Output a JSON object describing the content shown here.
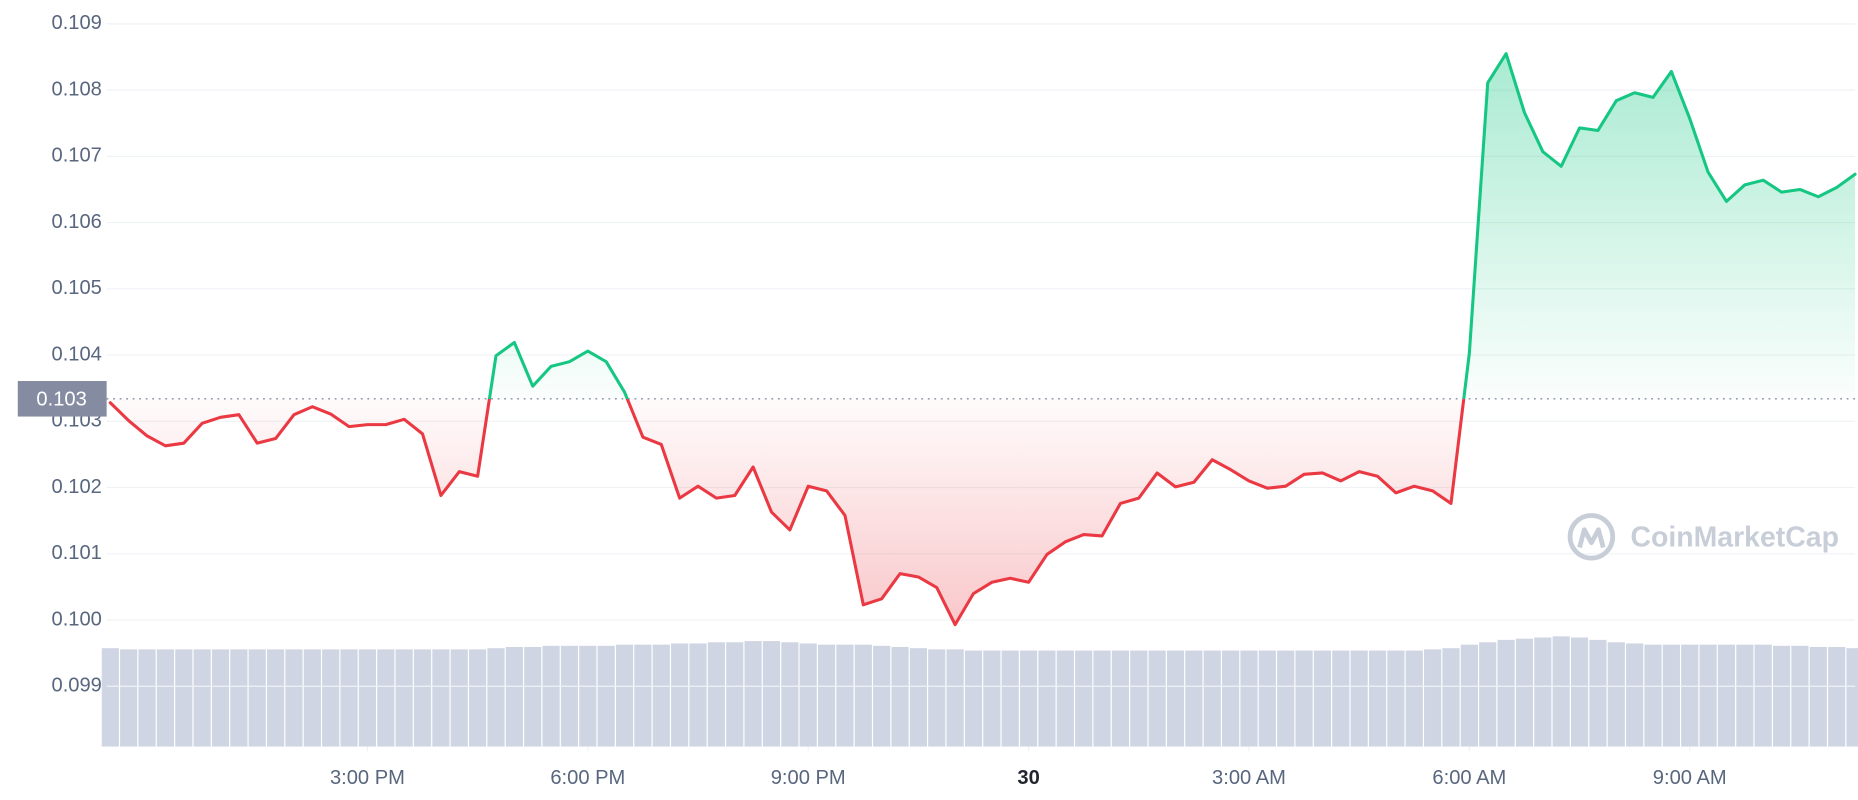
{
  "chart_data": {
    "type": "line",
    "x": [
      11.5,
      11.75,
      12,
      12.25,
      12.5,
      12.75,
      13,
      13.25,
      13.5,
      13.75,
      14,
      14.25,
      14.5,
      14.75,
      15,
      15.25,
      15.5,
      15.75,
      16,
      16.25,
      16.5,
      16.75,
      17,
      17.25,
      17.5,
      17.75,
      18,
      18.25,
      18.5,
      18.75,
      19,
      19.25,
      19.5,
      19.75,
      20,
      20.25,
      20.5,
      20.75,
      21,
      21.25,
      21.5,
      21.75,
      22,
      22.25,
      22.5,
      22.75,
      23,
      23.25,
      23.5,
      23.75,
      24,
      24.25,
      24.5,
      24.75,
      25,
      25.25,
      25.5,
      25.75,
      26,
      26.25,
      26.5,
      26.75,
      27,
      27.25,
      27.5,
      27.75,
      28,
      28.25,
      28.5,
      28.75,
      29,
      29.25,
      29.5,
      29.75,
      30,
      30.25,
      30.5,
      30.75,
      31,
      31.25,
      31.5,
      31.75,
      32,
      32.25,
      32.5,
      32.75,
      33,
      33.25,
      33.5,
      33.75,
      34,
      34.25,
      34.5,
      34.75,
      35,
      35.25
    ],
    "series": [
      {
        "color_up": "#16c784",
        "color_down": "#ea3943",
        "values": [
          0.10328,
          0.10301,
          0.10278,
          0.10263,
          0.10267,
          0.10297,
          0.10306,
          0.1031,
          0.10267,
          0.10274,
          0.1031,
          0.10322,
          0.10311,
          0.10292,
          0.10295,
          0.10295,
          0.10303,
          0.10281,
          0.10188,
          0.10224,
          0.10217,
          0.10399,
          0.10419,
          0.10353,
          0.10383,
          0.1039,
          0.10406,
          0.1039,
          0.10344,
          0.10276,
          0.10265,
          0.10184,
          0.10202,
          0.10184,
          0.10188,
          0.10231,
          0.10163,
          0.10136,
          0.10202,
          0.10195,
          0.10158,
          0.10023,
          0.10032,
          0.1007,
          0.10065,
          0.10049,
          0.09993,
          0.1004,
          0.10057,
          0.10063,
          0.10057,
          0.10099,
          0.10118,
          0.10129,
          0.10127,
          0.10176,
          0.10184,
          0.10222,
          0.10201,
          0.10208,
          0.10242,
          0.10227,
          0.1021,
          0.10199,
          0.10202,
          0.1022,
          0.10222,
          0.1021,
          0.10224,
          0.10217,
          0.10192,
          0.10202,
          0.10195,
          0.10176,
          0.10403,
          0.10811,
          0.10855,
          0.10766,
          0.10707,
          0.10685,
          0.10743,
          0.10739,
          0.10784,
          0.10796,
          0.10789,
          0.10828,
          0.10757,
          0.10676,
          0.10632,
          0.10657,
          0.10664,
          0.10646,
          0.1065,
          0.10639,
          0.10653,
          0.10673
        ]
      },
      {
        "type": "bar",
        "axis": "y2",
        "color": "#cfd5e2",
        "values": [
          83,
          82,
          82,
          82,
          82,
          82,
          82,
          82,
          82,
          82,
          82,
          82,
          82,
          82,
          82,
          82,
          82,
          82,
          82,
          82,
          82,
          83,
          84,
          84,
          85,
          85,
          85,
          85,
          86,
          86,
          86,
          87,
          87,
          88,
          88,
          89,
          89,
          88,
          87,
          86,
          86,
          86,
          85,
          84,
          83,
          82,
          82,
          81,
          81,
          81,
          81,
          81,
          81,
          81,
          81,
          81,
          81,
          81,
          81,
          81,
          81,
          81,
          81,
          81,
          81,
          81,
          81,
          81,
          81,
          81,
          81,
          81,
          82,
          83,
          86,
          88,
          90,
          91,
          92,
          93,
          92,
          90,
          88,
          87,
          86,
          86,
          86,
          86,
          86,
          86,
          86,
          85,
          85,
          84,
          84,
          83
        ]
      }
    ],
    "xlim": [
      11.45,
      35.25
    ],
    "xticks": [
      {
        "value": 15,
        "label": "3:00 PM"
      },
      {
        "value": 18,
        "label": "6:00 PM"
      },
      {
        "value": 21,
        "label": "9:00 PM"
      },
      {
        "value": 24,
        "label": "30"
      },
      {
        "value": 27,
        "label": "3:00 AM"
      },
      {
        "value": 30,
        "label": "6:00 AM"
      },
      {
        "value": 33,
        "label": "9:00 AM"
      }
    ],
    "ylim": [
      0.09809,
      0.10936
    ],
    "yticks": [
      0.109,
      0.108,
      0.107,
      0.106,
      0.105,
      0.104,
      0.103,
      0.102,
      0.101,
      {
        "value": 0.1,
        "label": "0.100"
      },
      0.099
    ],
    "y2lim": [
      0,
      100
    ],
    "baseline": {
      "value": 0.10334,
      "label": "0.103"
    },
    "grid": true,
    "watermark": "CoinMarketCap"
  }
}
